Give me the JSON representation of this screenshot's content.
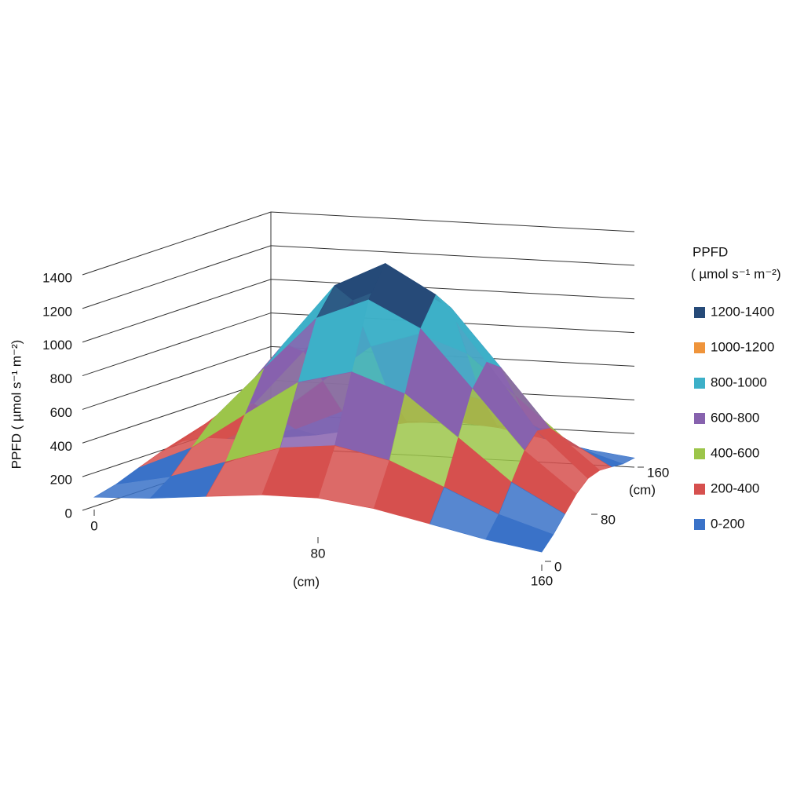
{
  "chart_data": {
    "type": "surface",
    "zlabel": "PPFD ( µmol s⁻¹ m⁻²)",
    "xlabel": "(cm)",
    "ylabel": "(cm)",
    "xlim": [
      0,
      160
    ],
    "xticks": [
      0,
      80,
      160
    ],
    "ylim": [
      0,
      160
    ],
    "yticks": [
      0,
      80,
      160
    ],
    "zlim": [
      0,
      1400
    ],
    "zticks": [
      0,
      200,
      400,
      600,
      800,
      1000,
      1200,
      1400
    ],
    "x": [
      0,
      20,
      40,
      60,
      80,
      100,
      120,
      140,
      160
    ],
    "y": [
      0,
      20,
      40,
      60,
      80,
      100,
      120,
      140,
      160
    ],
    "z": [
      [
        55,
        89,
        141,
        191,
        213,
        191,
        141,
        89,
        55
      ],
      [
        89,
        172,
        296,
        417,
        468,
        417,
        296,
        172,
        89
      ],
      [
        141,
        296,
        527,
        753,
        849,
        753,
        527,
        296,
        141
      ],
      [
        191,
        417,
        753,
        1081,
        1221,
        1081,
        753,
        417,
        191
      ],
      [
        213,
        468,
        849,
        1221,
        1380,
        1221,
        849,
        468,
        213
      ],
      [
        191,
        417,
        753,
        1081,
        1221,
        1081,
        753,
        417,
        191
      ],
      [
        141,
        296,
        527,
        753,
        849,
        753,
        527,
        296,
        141
      ],
      [
        89,
        172,
        296,
        417,
        468,
        417,
        296,
        172,
        89
      ],
      [
        55,
        89,
        141,
        191,
        213,
        191,
        141,
        89,
        55
      ]
    ],
    "legend_title": "PPFD",
    "legend_unit": "( µmol s⁻¹  m⁻²)",
    "bands": [
      {
        "label": "0-200",
        "color": "#3a72c8"
      },
      {
        "label": "200-400",
        "color": "#d6504e"
      },
      {
        "label": "400-600",
        "color": "#9cc54a"
      },
      {
        "label": "600-800",
        "color": "#8762ae"
      },
      {
        "label": "800-1000",
        "color": "#3db0c8"
      },
      {
        "label": "1000-1200",
        "color": "#ef943b"
      },
      {
        "label": "1200-1400",
        "color": "#264a78"
      }
    ]
  }
}
